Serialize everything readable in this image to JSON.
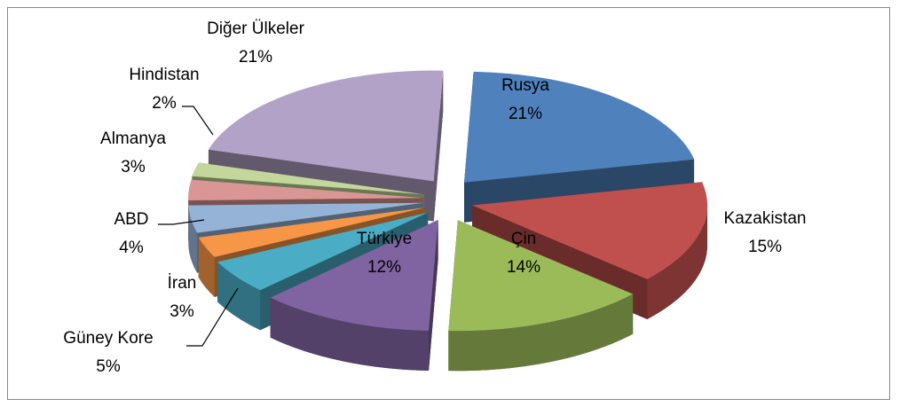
{
  "chart_data": {
    "type": "pie",
    "categories": [
      "Rusya",
      "Kazakistan",
      "Çin",
      "Türkiye",
      "Güney Kore",
      "İran",
      "ABD",
      "Almanya",
      "Hindistan",
      "Diğer Ülkeler"
    ],
    "values": [
      21,
      15,
      14,
      12,
      5,
      3,
      4,
      3,
      2,
      21
    ],
    "value_labels": [
      "21%",
      "15%",
      "14%",
      "12%",
      "5%",
      "3%",
      "4%",
      "3%",
      "2%",
      "21%"
    ],
    "colors": [
      "#4f81bd",
      "#c0504d",
      "#9bbb59",
      "#8064a2",
      "#4bacc6",
      "#f79646",
      "#95b3d7",
      "#d99694",
      "#c3d69b",
      "#b2a2c7"
    ]
  }
}
